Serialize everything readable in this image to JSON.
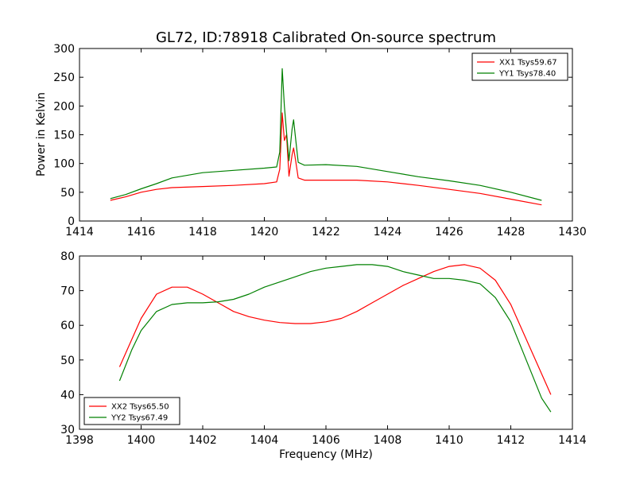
{
  "chart_data": [
    {
      "type": "line",
      "title": "GL72, ID:78918 Calibrated On-source spectrum",
      "xlabel": "",
      "ylabel": "Power in Kelvin",
      "xlim": [
        1414,
        1430
      ],
      "ylim": [
        0,
        300
      ],
      "xticks": [
        1414,
        1416,
        1418,
        1420,
        1422,
        1424,
        1426,
        1428,
        1430
      ],
      "yticks": [
        0,
        50,
        100,
        150,
        200,
        250,
        300
      ],
      "grid": false,
      "legend_position": "top-right",
      "series": [
        {
          "name": "XX1 Tsys59.67",
          "color": "#ff0000",
          "points": [
            [
              1415.0,
              36
            ],
            [
              1415.5,
              42
            ],
            [
              1416.0,
              50
            ],
            [
              1416.5,
              55
            ],
            [
              1417.0,
              58
            ],
            [
              1418.0,
              60
            ],
            [
              1419.0,
              62
            ],
            [
              1420.0,
              65
            ],
            [
              1420.4,
              68
            ],
            [
              1420.5,
              90
            ],
            [
              1420.58,
              188
            ],
            [
              1420.65,
              140
            ],
            [
              1420.72,
              150
            ],
            [
              1420.8,
              78
            ],
            [
              1420.9,
              115
            ],
            [
              1420.95,
              127
            ],
            [
              1421.0,
              110
            ],
            [
              1421.1,
              75
            ],
            [
              1421.3,
              71
            ],
            [
              1422.0,
              71
            ],
            [
              1423.0,
              71
            ],
            [
              1424.0,
              68
            ],
            [
              1425.0,
              62
            ],
            [
              1426.0,
              55
            ],
            [
              1427.0,
              48
            ],
            [
              1428.0,
              38
            ],
            [
              1429.0,
              28
            ]
          ]
        },
        {
          "name": "YY1 Tsys78.40",
          "color": "#008000",
          "points": [
            [
              1415.0,
              39
            ],
            [
              1415.5,
              46
            ],
            [
              1416.0,
              56
            ],
            [
              1416.5,
              65
            ],
            [
              1417.0,
              75
            ],
            [
              1418.0,
              84
            ],
            [
              1419.0,
              88
            ],
            [
              1420.0,
              92
            ],
            [
              1420.4,
              94
            ],
            [
              1420.5,
              120
            ],
            [
              1420.58,
              265
            ],
            [
              1420.65,
              200
            ],
            [
              1420.72,
              155
            ],
            [
              1420.8,
              105
            ],
            [
              1420.9,
              160
            ],
            [
              1420.95,
              176
            ],
            [
              1421.0,
              150
            ],
            [
              1421.1,
              102
            ],
            [
              1421.3,
              97
            ],
            [
              1422.0,
              98
            ],
            [
              1423.0,
              95
            ],
            [
              1424.0,
              86
            ],
            [
              1425.0,
              77
            ],
            [
              1426.0,
              70
            ],
            [
              1427.0,
              62
            ],
            [
              1428.0,
              50
            ],
            [
              1429.0,
              36
            ]
          ]
        }
      ]
    },
    {
      "type": "line",
      "title": "",
      "xlabel": "Frequency (MHz)",
      "ylabel": "",
      "xlim": [
        1398,
        1414
      ],
      "ylim": [
        30,
        80
      ],
      "xticks": [
        1398,
        1400,
        1402,
        1404,
        1406,
        1408,
        1410,
        1412,
        1414
      ],
      "yticks": [
        30,
        40,
        50,
        60,
        70,
        80
      ],
      "grid": false,
      "legend_position": "bottom-left",
      "series": [
        {
          "name": "XX2 Tsys65.50",
          "color": "#ff0000",
          "points": [
            [
              1399.3,
              48
            ],
            [
              1399.7,
              56
            ],
            [
              1400.0,
              62
            ],
            [
              1400.5,
              69
            ],
            [
              1401.0,
              71
            ],
            [
              1401.5,
              71
            ],
            [
              1402.0,
              69
            ],
            [
              1402.5,
              66.5
            ],
            [
              1403.0,
              64
            ],
            [
              1403.5,
              62.5
            ],
            [
              1404.0,
              61.5
            ],
            [
              1404.5,
              60.8
            ],
            [
              1405.0,
              60.5
            ],
            [
              1405.5,
              60.5
            ],
            [
              1406.0,
              61
            ],
            [
              1406.5,
              62
            ],
            [
              1407.0,
              64
            ],
            [
              1407.5,
              66.5
            ],
            [
              1408.0,
              69
            ],
            [
              1408.5,
              71.5
            ],
            [
              1409.0,
              73.5
            ],
            [
              1409.5,
              75.5
            ],
            [
              1410.0,
              77
            ],
            [
              1410.5,
              77.5
            ],
            [
              1411.0,
              76.5
            ],
            [
              1411.5,
              73
            ],
            [
              1412.0,
              66
            ],
            [
              1412.5,
              56
            ],
            [
              1413.0,
              46
            ],
            [
              1413.3,
              40
            ]
          ]
        },
        {
          "name": "YY2 Tsys67.49",
          "color": "#008000",
          "points": [
            [
              1399.3,
              44
            ],
            [
              1399.7,
              53
            ],
            [
              1400.0,
              58.5
            ],
            [
              1400.5,
              64
            ],
            [
              1401.0,
              66
            ],
            [
              1401.5,
              66.5
            ],
            [
              1402.0,
              66.5
            ],
            [
              1402.5,
              66.8
            ],
            [
              1403.0,
              67.5
            ],
            [
              1403.5,
              69
            ],
            [
              1404.0,
              71
            ],
            [
              1404.5,
              72.5
            ],
            [
              1405.0,
              74
            ],
            [
              1405.5,
              75.5
            ],
            [
              1406.0,
              76.5
            ],
            [
              1406.5,
              77
            ],
            [
              1407.0,
              77.5
            ],
            [
              1407.5,
              77.5
            ],
            [
              1408.0,
              77
            ],
            [
              1408.5,
              75.5
            ],
            [
              1409.0,
              74.5
            ],
            [
              1409.5,
              73.5
            ],
            [
              1410.0,
              73.5
            ],
            [
              1410.5,
              73
            ],
            [
              1411.0,
              72
            ],
            [
              1411.5,
              68
            ],
            [
              1412.0,
              61
            ],
            [
              1412.5,
              50
            ],
            [
              1413.0,
              39
            ],
            [
              1413.3,
              35
            ]
          ]
        }
      ]
    }
  ]
}
